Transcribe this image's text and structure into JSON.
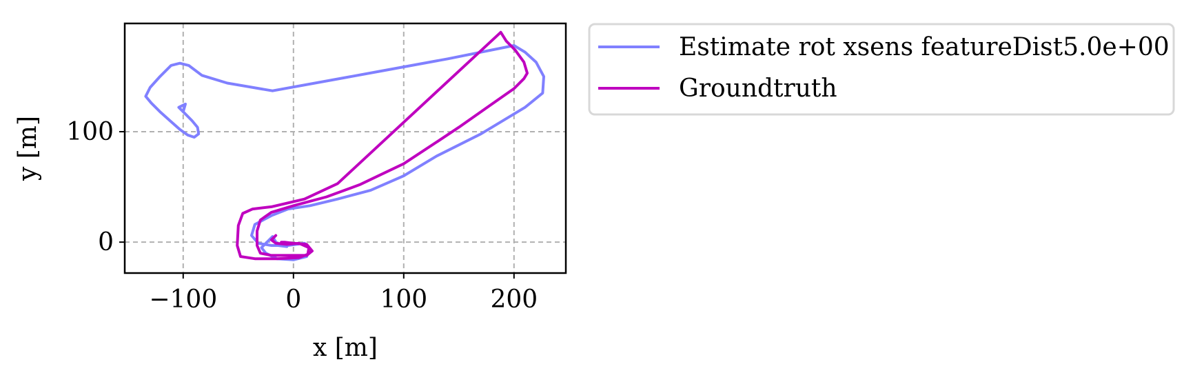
{
  "chart_data": {
    "type": "line",
    "xlabel": "x [m]",
    "ylabel": "y [m]",
    "xlim": [
      -153,
      247
    ],
    "ylim": [
      -28,
      198
    ],
    "x_ticks": [
      -100,
      0,
      100,
      200
    ],
    "y_ticks": [
      0,
      100
    ],
    "x_tick_labels": [
      "−100",
      "0",
      "100",
      "200"
    ],
    "y_tick_labels": [
      "0",
      "100"
    ],
    "grid": true,
    "legend_position": "outside-top-right",
    "series": [
      {
        "name": "Estimate rot xsens featureDist5.0e+00",
        "color": "#8080ff",
        "points": [
          [
            -100,
            118
          ],
          [
            -98,
            125
          ],
          [
            -104,
            122
          ],
          [
            -100,
            118
          ],
          [
            -92,
            110
          ],
          [
            -87,
            104
          ],
          [
            -86,
            98
          ],
          [
            -90,
            95
          ],
          [
            -96,
            97
          ],
          [
            -103,
            102
          ],
          [
            -112,
            110
          ],
          [
            -121,
            118
          ],
          [
            -129,
            126
          ],
          [
            -134,
            132
          ],
          [
            -130,
            140
          ],
          [
            -121,
            150
          ],
          [
            -111,
            160
          ],
          [
            -103,
            162
          ],
          [
            -95,
            160
          ],
          [
            -83,
            151
          ],
          [
            -60,
            144
          ],
          [
            -19,
            137
          ],
          [
            80,
            155
          ],
          [
            140,
            166
          ],
          [
            200,
            178
          ],
          [
            210,
            172
          ],
          [
            220,
            163
          ],
          [
            227,
            150
          ],
          [
            226,
            135
          ],
          [
            210,
            122
          ],
          [
            170,
            98
          ],
          [
            130,
            78
          ],
          [
            100,
            60
          ],
          [
            70,
            47
          ],
          [
            40,
            39
          ],
          [
            15,
            33
          ],
          [
            -5,
            30
          ],
          [
            -20,
            24
          ],
          [
            -35,
            16
          ],
          [
            -38,
            6
          ],
          [
            -32,
            -1
          ],
          [
            -20,
            -3
          ],
          [
            -5,
            -3
          ],
          [
            10,
            -1
          ],
          [
            15,
            -6
          ],
          [
            12,
            -13
          ],
          [
            0,
            -16
          ],
          [
            -15,
            -15
          ],
          [
            -25,
            -10
          ],
          [
            -29,
            -5
          ],
          [
            -19,
            5
          ],
          [
            -14,
            -3
          ],
          [
            -6,
            -4
          ]
        ]
      },
      {
        "name": "Groundtruth",
        "color": "#bf00bf",
        "points": [
          [
            -16,
            6
          ],
          [
            -20,
            2
          ],
          [
            -16,
            -1
          ],
          [
            -6,
            -2
          ],
          [
            5,
            -1
          ],
          [
            14,
            -5
          ],
          [
            13,
            -11
          ],
          [
            5,
            -14
          ],
          [
            -15,
            -15
          ],
          [
            -35,
            -15
          ],
          [
            -48,
            -13
          ],
          [
            -51,
            -3
          ],
          [
            -50,
            15
          ],
          [
            -46,
            26
          ],
          [
            -37,
            30
          ],
          [
            -20,
            32
          ],
          [
            10,
            39
          ],
          [
            40,
            53
          ],
          [
            188,
            190
          ],
          [
            193,
            182
          ],
          [
            201,
            174
          ],
          [
            209,
            163
          ],
          [
            212,
            153
          ],
          [
            209,
            148
          ],
          [
            200,
            139
          ],
          [
            180,
            125
          ],
          [
            150,
            104
          ],
          [
            135,
            94
          ],
          [
            100,
            71
          ],
          [
            60,
            52
          ],
          [
            30,
            41
          ],
          [
            0,
            33
          ],
          [
            -20,
            27
          ],
          [
            -30,
            20
          ],
          [
            -33,
            10
          ],
          [
            -33,
            -3
          ],
          [
            -30,
            -10
          ],
          [
            -20,
            -12
          ],
          [
            0,
            -12
          ],
          [
            12,
            -12
          ],
          [
            17,
            -8
          ],
          [
            12,
            -2
          ],
          [
            0,
            -1
          ],
          [
            -8,
            0
          ],
          [
            -11,
            0
          ]
        ]
      }
    ]
  }
}
